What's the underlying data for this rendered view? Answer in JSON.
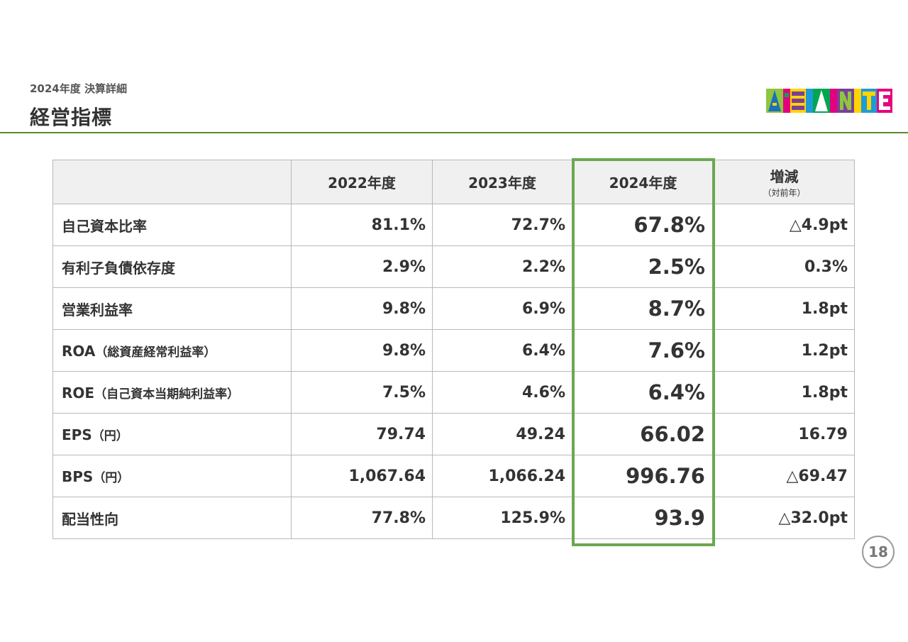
{
  "header": {
    "subtitle": "2024年度 決算詳細",
    "title": "経営指標"
  },
  "logo": {
    "text": "ASANTE",
    "colors": [
      "#8dc63f",
      "#1e9bd7",
      "#e5007f",
      "#ffd400",
      "#7b3f98",
      "#00a651"
    ]
  },
  "table": {
    "columns": [
      "",
      "2022年度",
      "2023年度",
      "2024年度",
      "増減"
    ],
    "change_note": "（対前年）",
    "rows": [
      {
        "label": "自己資本比率",
        "note": "",
        "v2022": "81.1%",
        "v2023": "72.7%",
        "v2024": "67.8%",
        "change": "△4.9pt"
      },
      {
        "label": "有利子負債依存度",
        "note": "",
        "v2022": "2.9%",
        "v2023": "2.2%",
        "v2024": "2.5%",
        "change": "0.3%"
      },
      {
        "label": "営業利益率",
        "note": "",
        "v2022": "9.8%",
        "v2023": "6.9%",
        "v2024": "8.7%",
        "change": "1.8pt"
      },
      {
        "label": "ROA",
        "note": "（総資産経常利益率）",
        "v2022": "9.8%",
        "v2023": "6.4%",
        "v2024": "7.6%",
        "change": "1.2pt"
      },
      {
        "label": "ROE",
        "note": "（自己資本当期純利益率）",
        "v2022": "7.5%",
        "v2023": "4.6%",
        "v2024": "6.4%",
        "change": "1.8pt"
      },
      {
        "label": "EPS",
        "note": "（円）",
        "v2022": "79.74",
        "v2023": "49.24",
        "v2024": "66.02",
        "change": "16.79"
      },
      {
        "label": "BPS",
        "note": "（円）",
        "v2022": "1,067.64",
        "v2023": "1,066.24",
        "v2024": "996.76",
        "change": "△69.47"
      },
      {
        "label": "配当性向",
        "note": "",
        "v2022": "77.8%",
        "v2023": "125.9%",
        "v2024": "93.9",
        "change": "△32.0pt"
      }
    ]
  },
  "highlight_color": "#6aa84f",
  "page_number": "18"
}
